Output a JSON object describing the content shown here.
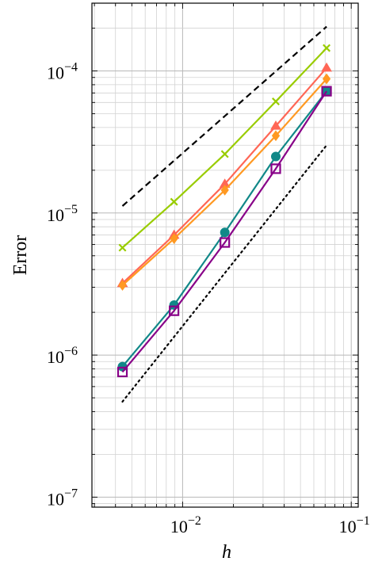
{
  "chart_data": {
    "type": "line",
    "xlabel": "h",
    "ylabel": "Error",
    "x_scale": "log",
    "y_scale": "log",
    "xlim": [
      0.0029,
      0.11
    ],
    "ylim": [
      8.5e-08,
      0.0003
    ],
    "grid": true,
    "x_ticks": [
      {
        "value": 0.01,
        "base": "10",
        "exp": "−2"
      },
      {
        "value": 0.1,
        "base": "10",
        "exp": "−1"
      }
    ],
    "y_ticks": [
      {
        "value": 1e-07,
        "base": "10",
        "exp": "−7"
      },
      {
        "value": 1e-06,
        "base": "10",
        "exp": "−6"
      },
      {
        "value": 1e-05,
        "base": "10",
        "exp": "−5"
      },
      {
        "value": 0.0001,
        "base": "10",
        "exp": "−4"
      }
    ],
    "x": [
      0.0044,
      0.0089,
      0.0178,
      0.0357,
      0.0714
    ],
    "series": [
      {
        "color": "#99cc00",
        "marker": "cross",
        "dash": "solid",
        "values": [
          5.7e-06,
          1.2e-05,
          2.6e-05,
          6.1e-05,
          0.000145
        ]
      },
      {
        "color": "#ff6655",
        "marker": "triangle",
        "dash": "solid",
        "values": [
          3.2e-06,
          7e-06,
          1.6e-05,
          4.1e-05,
          0.000105
        ]
      },
      {
        "color": "#ff9922",
        "marker": "diamond",
        "dash": "solid",
        "values": [
          3.1e-06,
          6.6e-06,
          1.45e-05,
          3.5e-05,
          8.8e-05
        ]
      },
      {
        "color": "#118888",
        "marker": "circle",
        "dash": "solid",
        "values": [
          8.3e-07,
          2.25e-06,
          7.3e-06,
          2.5e-05,
          7.2e-05
        ]
      },
      {
        "color": "#880088",
        "marker": "square",
        "dash": "solid",
        "values": [
          7.6e-07,
          2.05e-06,
          6.2e-06,
          2.05e-05,
          7.2e-05
        ]
      },
      {
        "color": "#000000",
        "marker": "none",
        "dash": "dashed",
        "x": [
          0.0044,
          0.0714
        ],
        "values": [
          1.12e-05,
          0.000205
        ]
      },
      {
        "color": "#000000",
        "marker": "none",
        "dash": "dotted",
        "x": [
          0.0044,
          0.0714
        ],
        "values": [
          4.7e-07,
          3e-05
        ]
      }
    ]
  }
}
